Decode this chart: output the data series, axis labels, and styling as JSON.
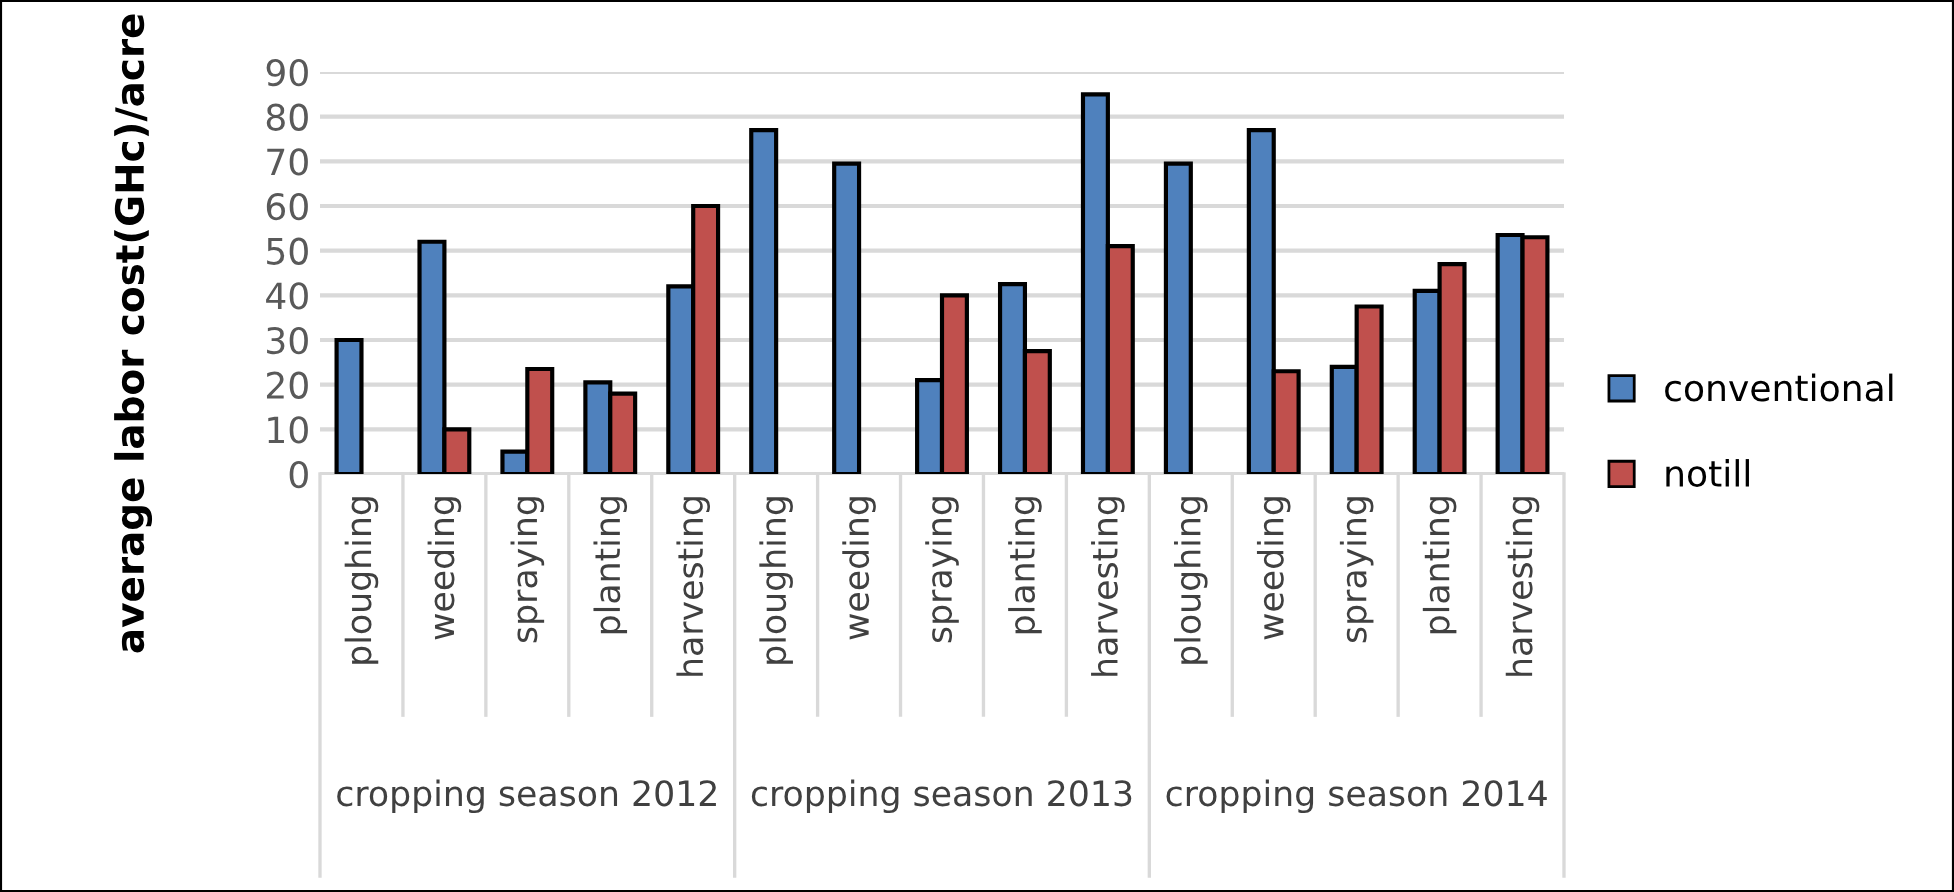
{
  "chart_data": {
    "type": "bar",
    "ylabel": "average labor cost(GHc)/acre",
    "categories": [
      "ploughing",
      "weeding",
      "spraying",
      "planting",
      "harvesting",
      "ploughing",
      "weeding",
      "spraying",
      "planting",
      "harvesting",
      "ploughing",
      "weeding",
      "spraying",
      "planting",
      "harvesting"
    ],
    "series": [
      {
        "name": "conventional",
        "color": "#4f81bd",
        "values": [
          30,
          52,
          5,
          20.5,
          42,
          77,
          69.5,
          21,
          42.5,
          85,
          69.5,
          77,
          24,
          41,
          53.5
        ]
      },
      {
        "name": "notill",
        "color": "#c0504d",
        "values": [
          null,
          10,
          23.5,
          18,
          60,
          null,
          null,
          40,
          27.5,
          51,
          null,
          23,
          37.5,
          47,
          53
        ]
      }
    ],
    "annotations": [
      "cropping season 2012",
      "cropping season 2013",
      "cropping season 2014"
    ],
    "ylim": [
      0,
      90
    ],
    "yticks": [
      0,
      10,
      20,
      30,
      40,
      50,
      60,
      70,
      80,
      90
    ],
    "grid": "y",
    "legend": "right"
  }
}
